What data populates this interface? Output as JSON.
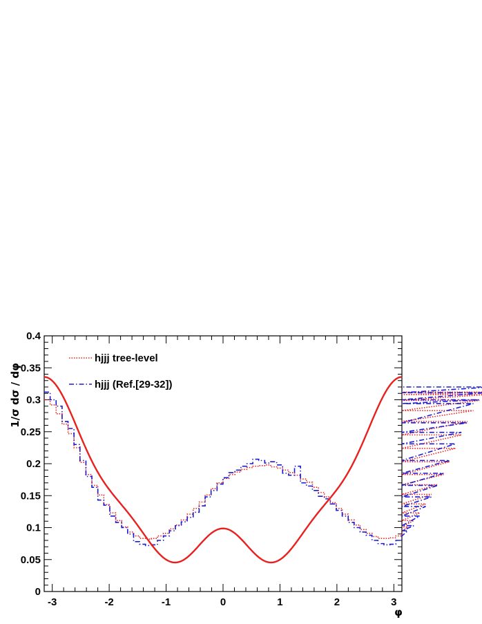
{
  "chart_data": {
    "type": "line",
    "title": "",
    "xlabel": "φ",
    "ylabel": "1/σ dσ / dφ",
    "xlim": [
      -3.1416,
      3.1416
    ],
    "ylim": [
      0,
      0.4
    ],
    "x_ticks": [
      -3,
      -2,
      -1,
      0,
      1,
      2,
      3
    ],
    "x_tick_labels": [
      "-3",
      "-2",
      "-1",
      "0",
      "1",
      "2",
      "3"
    ],
    "y_ticks": [
      0,
      0.05,
      0.1,
      0.15,
      0.2,
      0.25,
      0.3,
      0.35,
      0.4
    ],
    "y_tick_labels": [
      "0",
      "0.05",
      "0.1",
      "0.15",
      "0.2",
      "0.25",
      "0.3",
      "0.35",
      "0.4"
    ],
    "grid": false,
    "legend_position": "top-left",
    "series": [
      {
        "name": "hjjj tree-level",
        "style": "dotted-histogram",
        "color": "#e8201e",
        "bin_width": 0.1047,
        "values": [
          0.3,
          0.292,
          0.278,
          0.262,
          0.247,
          0.225,
          0.202,
          0.183,
          0.166,
          0.151,
          0.136,
          0.123,
          0.111,
          0.101,
          0.093,
          0.087,
          0.083,
          0.082,
          0.083,
          0.087,
          0.091,
          0.098,
          0.104,
          0.112,
          0.121,
          0.13,
          0.14,
          0.151,
          0.161,
          0.17,
          0.177,
          0.183,
          0.187,
          0.191,
          0.194,
          0.196,
          0.197,
          0.198,
          0.195,
          0.193,
          0.19,
          0.186,
          0.182,
          0.176,
          0.171,
          0.163,
          0.155,
          0.148,
          0.139,
          0.13,
          0.121,
          0.112,
          0.104,
          0.097,
          0.091,
          0.086,
          0.083,
          0.083,
          0.084,
          0.087,
          0.094,
          0.101,
          0.111,
          0.123,
          0.137,
          0.152,
          0.167,
          0.183,
          0.203,
          0.224,
          0.245,
          0.266,
          0.283,
          0.299,
          0.308,
          0.312
        ]
      },
      {
        "name": "hjjj (Ref.[29-32])",
        "style": "dashdot-histogram",
        "color": "#1a1ad6",
        "bin_width": 0.1047,
        "values": [
          0.312,
          0.3,
          0.29,
          0.266,
          0.255,
          0.23,
          0.205,
          0.18,
          0.163,
          0.143,
          0.135,
          0.118,
          0.108,
          0.1,
          0.09,
          0.078,
          0.074,
          0.072,
          0.073,
          0.08,
          0.087,
          0.095,
          0.103,
          0.109,
          0.116,
          0.124,
          0.134,
          0.148,
          0.158,
          0.168,
          0.178,
          0.186,
          0.19,
          0.196,
          0.2,
          0.207,
          0.205,
          0.201,
          0.203,
          0.198,
          0.185,
          0.182,
          0.196,
          0.17,
          0.165,
          0.158,
          0.149,
          0.145,
          0.137,
          0.127,
          0.118,
          0.108,
          0.1,
          0.093,
          0.088,
          0.08,
          0.075,
          0.073,
          0.074,
          0.08,
          0.087,
          0.095,
          0.103,
          0.118,
          0.133,
          0.148,
          0.166,
          0.185,
          0.205,
          0.231,
          0.249,
          0.264,
          0.294,
          0.3,
          0.311,
          0.32
        ]
      },
      {
        "name": "",
        "style": "solid-curve",
        "color": "#e8201e",
        "formula": "0.1472 + 0.0526*cos(2x) - 0.1185*cos(x) + 0.0174*cos(4x)",
        "sample_count": 241
      }
    ]
  }
}
